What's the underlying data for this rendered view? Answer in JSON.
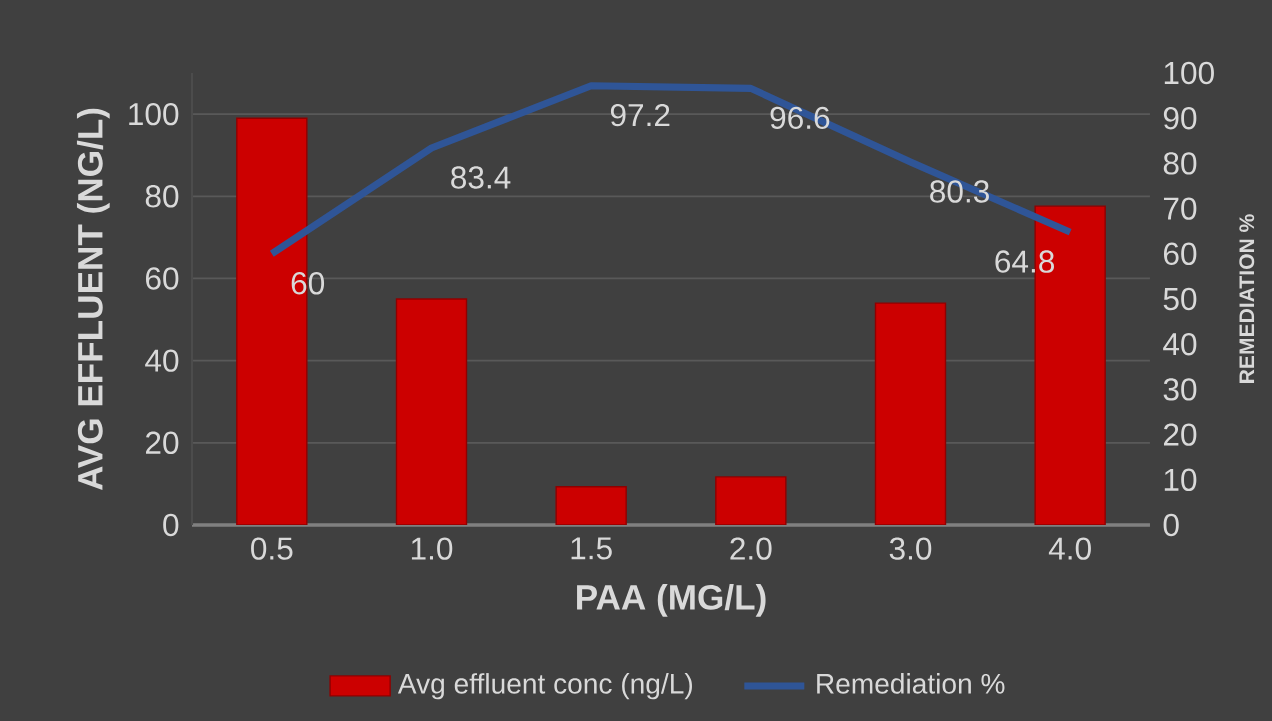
{
  "chart_data": {
    "type": "bar",
    "xlabel": "PAA (MG/L)",
    "ylabel": "AVG EFFLUENT (NG/L)",
    "y2label": "REMEDIATION %",
    "categories": [
      "0.5",
      "1.0",
      "1.5",
      "2.0",
      "3.0",
      "4.0"
    ],
    "series": [
      {
        "name": "Avg effluent conc (ng/L)",
        "color": "#cc0000",
        "values": [
          99,
          55,
          9.3,
          11.7,
          54,
          77.6
        ]
      },
      {
        "name": "Remediation %",
        "type": "line",
        "axis": "y2",
        "color": "#2f5597",
        "values": [
          60,
          83.4,
          97.2,
          96.6,
          80.3,
          64.8
        ],
        "value_labels": [
          "60",
          "83.4",
          "97.2",
          "96.6",
          "80.3",
          "64.8"
        ]
      }
    ],
    "ylim": [
      0,
      110
    ],
    "yticks": [
      0,
      20,
      40,
      60,
      80,
      100
    ],
    "y2lim": [
      0,
      100
    ],
    "y2ticks": [
      0,
      10,
      20,
      30,
      40,
      50,
      60,
      70,
      80,
      90,
      100
    ],
    "grid": "y",
    "legend": "bottom"
  }
}
